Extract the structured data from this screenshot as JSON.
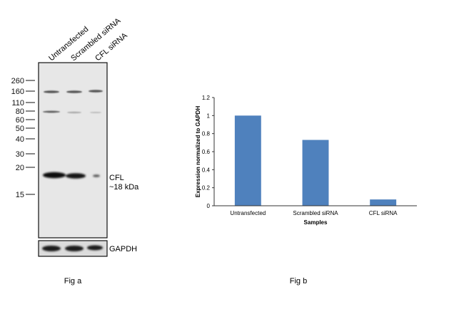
{
  "figure_a": {
    "lane_labels": [
      "Untransfected",
      "Scrambled siRNA",
      "CFL siRNA"
    ],
    "mw_markers": [
      "260",
      "160",
      "110",
      "80",
      "60",
      "50",
      "40",
      "30",
      "20",
      "15"
    ],
    "band_label_name": "CFL",
    "band_label_size": "~18 kDa",
    "control_label": "GAPDH",
    "caption": "Fig a"
  },
  "figure_b": {
    "caption": "Fig b"
  },
  "chart_data": {
    "type": "bar",
    "categories": [
      "Untransfected",
      "Scrambled siRNA",
      "CFL siRNA"
    ],
    "values": [
      1.0,
      0.73,
      0.07
    ],
    "xlabel": "Samples",
    "ylabel": "Expression normalized to GAPDH",
    "ylim": [
      0,
      1.2
    ],
    "yticks": [
      "0",
      "0.2",
      "0.4",
      "0.6",
      "0.8",
      "1",
      "1.2"
    ],
    "grid": false,
    "legend": "none",
    "bar_color": "#4f81bd"
  }
}
